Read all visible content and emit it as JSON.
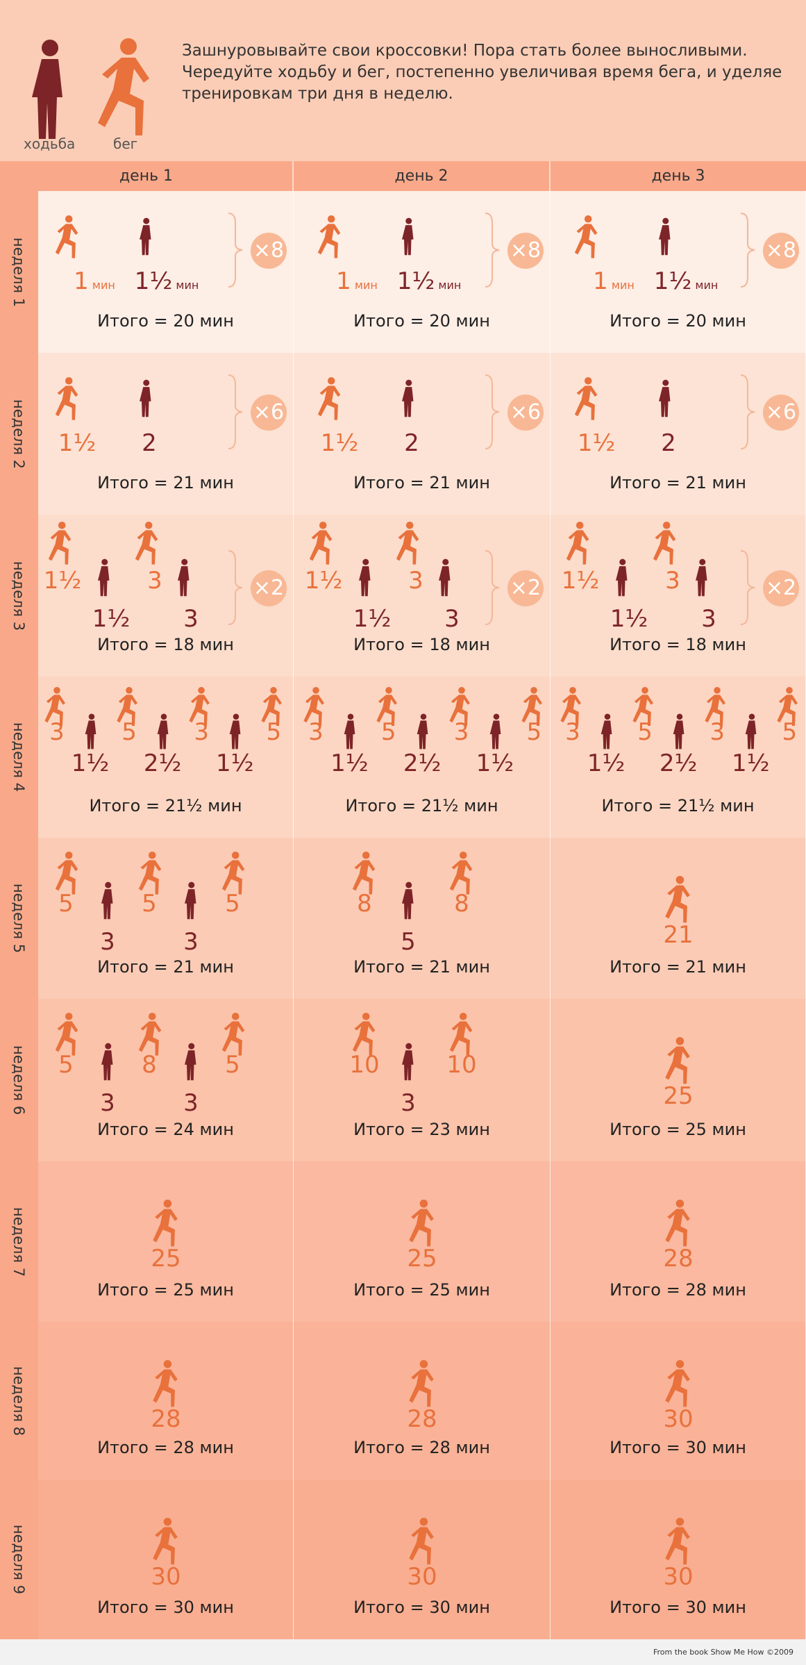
{
  "intro": "Зашнуровывайте свои кроссовки! Пора стать более выносливыми. Чередуйте ходьбу и бег, постепенно увеличивая время бега, и уделяе тренировкам три дня в неделю.",
  "legend": {
    "walk": "ходьба",
    "run": "бег"
  },
  "days": [
    "день 1",
    "день 2",
    "день 3"
  ],
  "unit": "мин",
  "weeks": [
    {
      "label": "неделя 1",
      "cells": [
        {
          "pattern": "pair",
          "run": "1",
          "walk": "1½",
          "mult": "×8",
          "total": "Итого  = 20 мин"
        },
        {
          "pattern": "pair",
          "run": "1",
          "walk": "1½",
          "mult": "×8",
          "total": "Итого  = 20 мин"
        },
        {
          "pattern": "pair",
          "run": "1",
          "walk": "1½",
          "mult": "×8",
          "total": "Итого  = 20 мин"
        }
      ]
    },
    {
      "label": "неделя 2",
      "cells": [
        {
          "pattern": "pair",
          "run": "1½",
          "walk": "2",
          "mult": "×6",
          "total": "Итого  = 21 мин"
        },
        {
          "pattern": "pair",
          "run": "1½",
          "walk": "2",
          "mult": "×6",
          "total": "Итого  = 21 мин"
        },
        {
          "pattern": "pair",
          "run": "1½",
          "walk": "2",
          "mult": "×6",
          "total": "Итого  = 21 мин"
        }
      ]
    },
    {
      "label": "неделя 3",
      "cells": [
        {
          "pattern": "quad",
          "seq": [
            "1½",
            "1½",
            "3",
            "3"
          ],
          "mult": "×2",
          "total": "Итого  = 18 мин"
        },
        {
          "pattern": "quad",
          "seq": [
            "1½",
            "1½",
            "3",
            "3"
          ],
          "mult": "×2",
          "total": "Итого  = 18 мин"
        },
        {
          "pattern": "quad",
          "seq": [
            "1½",
            "1½",
            "3",
            "3"
          ],
          "mult": "×2",
          "total": "Итого  = 18 мин"
        }
      ]
    },
    {
      "label": "неделя 4",
      "cells": [
        {
          "pattern": "seq7",
          "seq": [
            "3",
            "1½",
            "5",
            "2½",
            "3",
            "1½",
            "5"
          ],
          "total": "Итого  = 21½ мин"
        },
        {
          "pattern": "seq7",
          "seq": [
            "3",
            "1½",
            "5",
            "2½",
            "3",
            "1½",
            "5"
          ],
          "total": "Итого  = 21½ мин"
        },
        {
          "pattern": "seq7",
          "seq": [
            "3",
            "1½",
            "5",
            "2½",
            "3",
            "1½",
            "5"
          ],
          "total": "Итого  = 21½ мин"
        }
      ]
    },
    {
      "label": "неделя 5",
      "cells": [
        {
          "pattern": "seq5",
          "seq": [
            "5",
            "3",
            "5",
            "3",
            "5"
          ],
          "total": "Итого  = 21 мин"
        },
        {
          "pattern": "seq3",
          "seq": [
            "8",
            "5",
            "8"
          ],
          "total": "Итого  = 21 мин"
        },
        {
          "pattern": "single",
          "seq": [
            "21"
          ],
          "total": "Итого  = 21 мин"
        }
      ]
    },
    {
      "label": "неделя 6",
      "cells": [
        {
          "pattern": "seq5",
          "seq": [
            "5",
            "3",
            "8",
            "3",
            "5"
          ],
          "total": "Итого  = 24 мин"
        },
        {
          "pattern": "seq3",
          "seq": [
            "10",
            "3",
            "10"
          ],
          "total": "Итого  = 23 мин"
        },
        {
          "pattern": "single",
          "seq": [
            "25"
          ],
          "total": "Итого  = 25 мин"
        }
      ]
    },
    {
      "label": "неделя 7",
      "cells": [
        {
          "pattern": "single",
          "seq": [
            "25"
          ],
          "total": "Итого  = 25 мин"
        },
        {
          "pattern": "single",
          "seq": [
            "25"
          ],
          "total": "Итого  = 25 мин"
        },
        {
          "pattern": "single",
          "seq": [
            "28"
          ],
          "total": "Итого  = 28 мин"
        }
      ]
    },
    {
      "label": "неделя 8",
      "cells": [
        {
          "pattern": "single",
          "seq": [
            "28"
          ],
          "total": "Итого  = 28 мин"
        },
        {
          "pattern": "single",
          "seq": [
            "28"
          ],
          "total": "Итого  = 28 мин"
        },
        {
          "pattern": "single",
          "seq": [
            "30"
          ],
          "total": "Итого  = 30 мин"
        }
      ]
    },
    {
      "label": "неделя 9",
      "cells": [
        {
          "pattern": "single",
          "seq": [
            "30"
          ],
          "total": "Итого  = 30 мин"
        },
        {
          "pattern": "single",
          "seq": [
            "30"
          ],
          "total": "Итого  = 30 мин"
        },
        {
          "pattern": "single",
          "seq": [
            "30"
          ],
          "total": "Итого  = 30 мин"
        }
      ]
    }
  ],
  "colors": {
    "run": "#e8713c",
    "walk": "#7d2428",
    "row_backgrounds": [
      "#fdeee6",
      "#fde3d5",
      "#fcdccb",
      "#fcd6c3",
      "#fbcbb5",
      "#fbc3aa",
      "#fab9a0",
      "#fab398",
      "#f9ae91"
    ]
  },
  "credit": "From the book Show Me How ©2009"
}
